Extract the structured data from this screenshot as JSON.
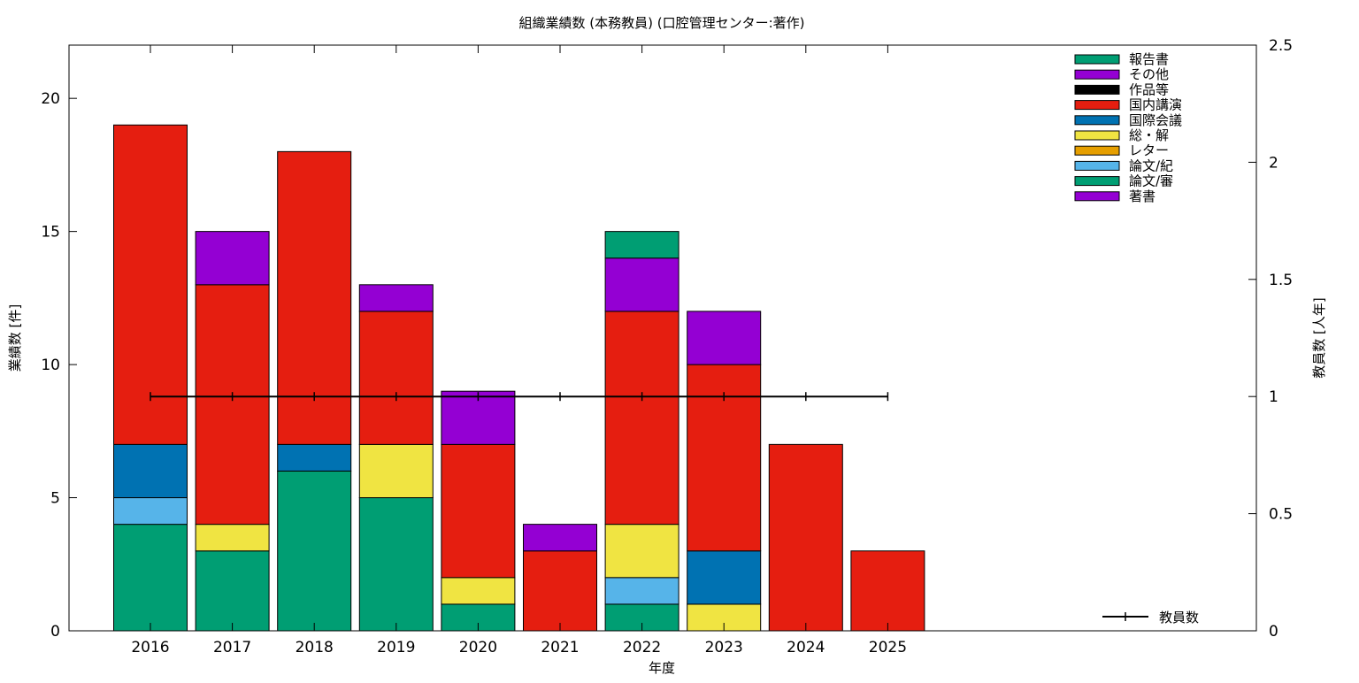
{
  "chart_data": {
    "type": "bar",
    "stacked": true,
    "title": "組織業績数 (本務教員) (口腔管理センター:著作)",
    "xlabel": "年度",
    "ylabel": "業績数 [件]",
    "y2label": "教員数 [人年]",
    "categories": [
      "2016",
      "2017",
      "2018",
      "2019",
      "2020",
      "2021",
      "2022",
      "2023",
      "2024",
      "2025"
    ],
    "ylim": [
      0,
      22
    ],
    "yticks": [
      0,
      5,
      10,
      15,
      20
    ],
    "y2lim": [
      0,
      2.5
    ],
    "y2ticks": [
      0,
      0.5,
      1,
      1.5,
      2,
      2.5
    ],
    "y2tick_labels": [
      "0",
      "0.5",
      "1",
      "1.5",
      "2",
      "2.5"
    ],
    "grid": false,
    "legend_position": "top-right",
    "series": [
      {
        "name": "著書",
        "color": "#9400d3",
        "values": [
          0,
          0,
          0,
          0,
          0,
          0,
          0,
          0,
          0,
          0
        ]
      },
      {
        "name": "論文/審",
        "color": "#009e73",
        "values": [
          4,
          3,
          6,
          5,
          1,
          0,
          1,
          0,
          0,
          0
        ]
      },
      {
        "name": "論文/紀",
        "color": "#56b4e9",
        "values": [
          1,
          0,
          0,
          0,
          0,
          0,
          1,
          0,
          0,
          0
        ]
      },
      {
        "name": "レター",
        "color": "#e69f00",
        "values": [
          0,
          0,
          0,
          0,
          0,
          0,
          0,
          0,
          0,
          0
        ]
      },
      {
        "name": "総・解",
        "color": "#f0e442",
        "values": [
          0,
          1,
          0,
          2,
          1,
          0,
          2,
          1,
          0,
          0
        ]
      },
      {
        "name": "国際会議",
        "color": "#0072b2",
        "values": [
          2,
          0,
          1,
          0,
          0,
          0,
          0,
          2,
          0,
          0
        ]
      },
      {
        "name": "国内講演",
        "color": "#e51e10",
        "values": [
          12,
          9,
          11,
          5,
          5,
          3,
          8,
          7,
          7,
          3
        ]
      },
      {
        "name": "作品等",
        "color": "#000000",
        "values": [
          0,
          0,
          0,
          0,
          0,
          0,
          0,
          0,
          0,
          0
        ]
      },
      {
        "name": "その他",
        "color": "#9400d3",
        "values": [
          0,
          2,
          0,
          1,
          2,
          1,
          2,
          2,
          0,
          0
        ]
      },
      {
        "name": "報告書",
        "color": "#009e73",
        "values": [
          0,
          0,
          0,
          0,
          0,
          0,
          1,
          0,
          0,
          0
        ]
      }
    ],
    "line_series": {
      "name": "教員数",
      "color": "#000000",
      "axis": "y2",
      "values": [
        1,
        1,
        1,
        1,
        1,
        1,
        1,
        1,
        1,
        1
      ]
    }
  }
}
